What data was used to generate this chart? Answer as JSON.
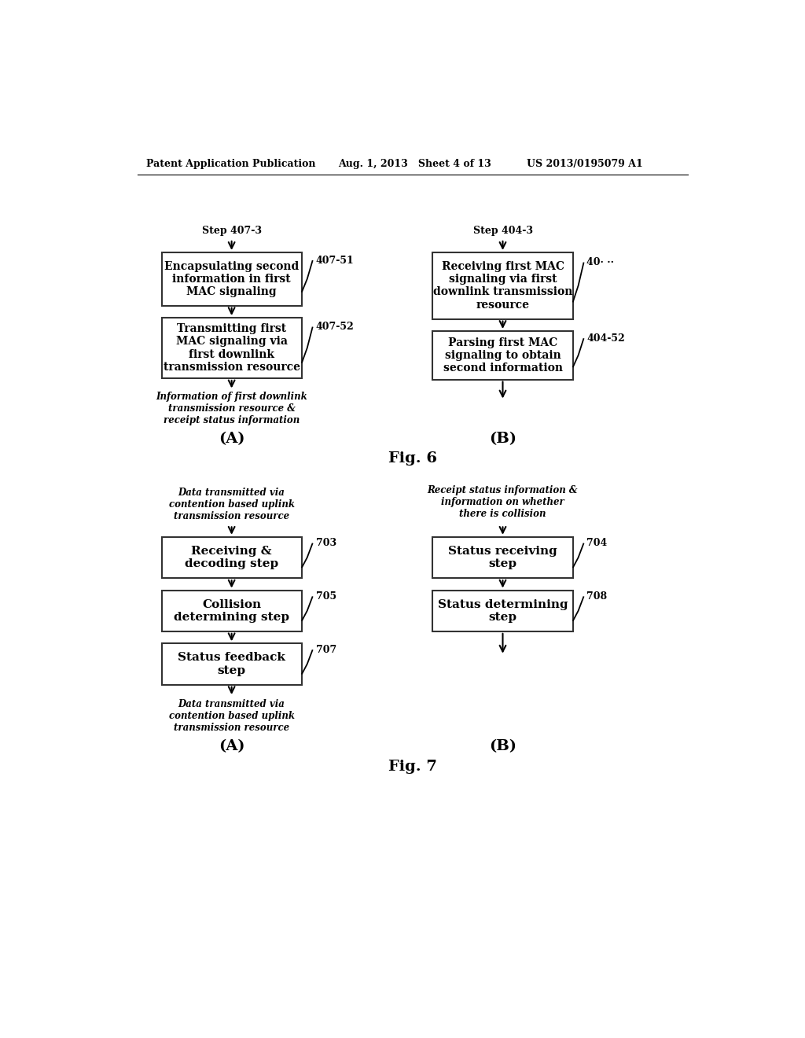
{
  "bg_color": "#ffffff",
  "header_left": "Patent Application Publication",
  "header_mid": "Aug. 1, 2013   Sheet 4 of 13",
  "header_right": "US 2013/0195079 A1",
  "fig6_title": "Fig. 6",
  "fig7_title": "Fig. 7",
  "fig6_A_label": "(A)",
  "fig6_B_label": "(B)",
  "fig7_A_label": "(A)",
  "fig7_B_label": "(B)",
  "fig6_A_step_label": "Step 407-3",
  "fig6_B_step_label": "Step 404-3",
  "fig6_A_box1_text": "Encapsulating second\ninformation in first\nMAC signaling",
  "fig6_A_box1_tag": "407-51",
  "fig6_A_box2_text": "Transmitting first\nMAC signaling via\nfirst downlink\ntransmission resource",
  "fig6_A_box2_tag": "407-52",
  "fig6_A_bottom_text": "Information of first downlink\ntransmission resource &\nreceipt status information",
  "fig6_B_box1_text": "Receiving first MAC\nsignaling via first\ndownlink transmission\nresource",
  "fig6_B_box1_tag": "40· ··",
  "fig6_B_box2_text": "Parsing first MAC\nsignaling to obtain\nsecond information",
  "fig6_B_box2_tag": "404-52",
  "fig7_A_top_text": "Data transmitted via\ncontention based uplink\ntransmission resource",
  "fig7_A_box1_text": "Receiving &\ndecoding step",
  "fig7_A_box1_tag": "703",
  "fig7_A_box2_text": "Collision\ndetermining step",
  "fig7_A_box2_tag": "705",
  "fig7_A_box3_text": "Status feedback\nstep",
  "fig7_A_box3_tag": "707",
  "fig7_A_bottom_text": "Data transmitted via\ncontention based uplink\ntransmission resource",
  "fig7_B_top_text": "Receipt status information &\ninformation on whether\nthere is collision",
  "fig7_B_box1_text": "Status receiving\nstep",
  "fig7_B_box1_tag": "704",
  "fig7_B_box2_text": "Status determining\nstep",
  "fig7_B_box2_tag": "708"
}
